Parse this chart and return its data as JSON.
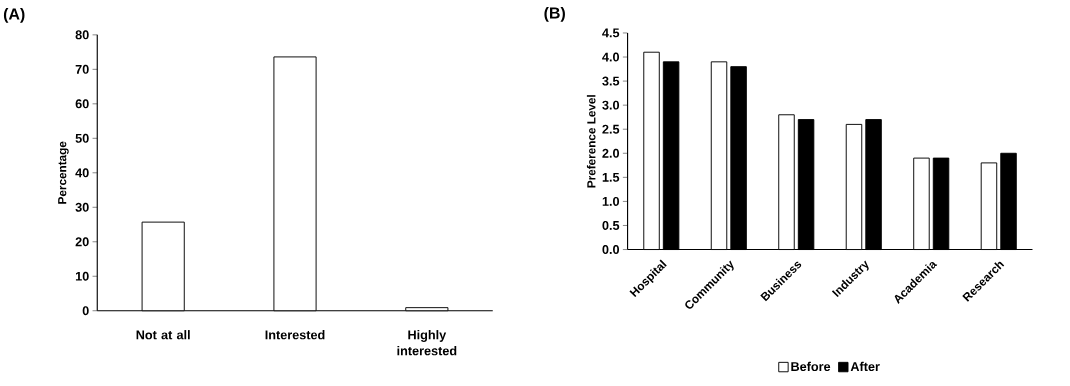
{
  "chart_data": [
    {
      "type": "bar",
      "title": "(A)",
      "ylabel": "Percentage",
      "categories": [
        "Not at all",
        "Interested",
        "Highly interested"
      ],
      "values": [
        25.7,
        73.6,
        0.9
      ],
      "color": "#ffffff",
      "ylim": [
        0,
        80
      ],
      "yticks": [
        0,
        10,
        20,
        30,
        40,
        50,
        60,
        70,
        80
      ]
    },
    {
      "type": "bar",
      "title": "(B)",
      "ylabel": "Preference Level",
      "categories": [
        "Hospital",
        "Community",
        "Business",
        "Industry",
        "Academia",
        "Research"
      ],
      "series": [
        {
          "name": "Before",
          "color": "#ffffff",
          "values": [
            4.1,
            3.9,
            2.8,
            2.6,
            1.9,
            1.8
          ]
        },
        {
          "name": "After",
          "color": "#000000",
          "values": [
            3.9,
            3.8,
            2.7,
            2.7,
            1.9,
            2.0
          ]
        }
      ],
      "ylim": [
        0,
        4.5
      ],
      "yticks": [
        {
          "value": 0,
          "label": "0.0"
        },
        {
          "value": 0.5,
          "label": "0.5"
        },
        {
          "value": 1,
          "label": "1.0"
        },
        {
          "value": 1.5,
          "label": "1.5"
        },
        {
          "value": 2,
          "label": "2.0"
        },
        {
          "value": 2.5,
          "label": "2.5"
        },
        {
          "value": 3,
          "label": "3.0"
        },
        {
          "value": 3.5,
          "label": "3.5"
        },
        {
          "value": 4,
          "label": "4.0"
        },
        {
          "value": 4.5,
          "label": "4.5"
        }
      ],
      "legend": "bottom"
    }
  ]
}
